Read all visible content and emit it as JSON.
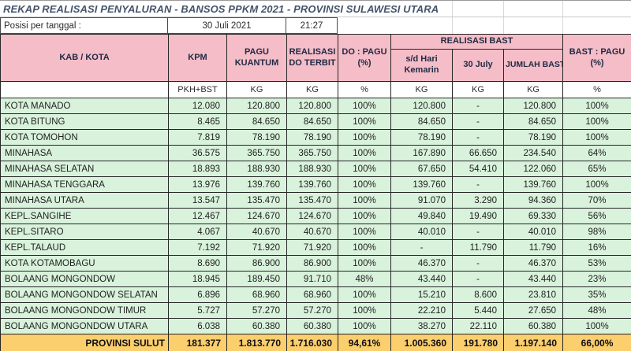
{
  "title": "REKAP REALISASI PENYALURAN - BANSOS PPKM 2021 - PROVINSI SULAWESI UTARA",
  "info": {
    "label": "Posisi per tanggal :",
    "date": "30 Juli 2021",
    "time": "21:27"
  },
  "colors": {
    "header_bg": "#F5BDC7",
    "header_text": "#1F2A44",
    "row_bg": "#D9F2DC",
    "total_bg": "#FBCE6E",
    "title_color": "#44546A",
    "border_dark": "#262626"
  },
  "table": {
    "headers": {
      "kab_kota": "KAB / KOTA",
      "kpm": "KPM",
      "pagu_kuantum": "PAGU KUANTUM",
      "realisasi_do_terbit": "REALISASI DO TERBIT",
      "do_pagu": "DO : PAGU (%)",
      "realisasi_bast": "REALISASI BAST",
      "sd_hari_kemarin": "s/d Hari Kemarin",
      "tgl_30_july": "30 July",
      "jumlah_bast": "JUMLAH BAST",
      "bast_pagu": "BAST : PAGU (%)"
    },
    "units": [
      "PKH+BST",
      "KG",
      "KG",
      "%",
      "KG",
      "KG",
      "KG",
      "%"
    ],
    "rows": [
      {
        "name": "KOTA MANADO",
        "values": [
          "12.080",
          "120.800",
          "120.800",
          "100%",
          "120.800",
          "-",
          "120.800",
          "100%"
        ]
      },
      {
        "name": "KOTA BITUNG",
        "values": [
          "8.465",
          "84.650",
          "84.650",
          "100%",
          "84.650",
          "-",
          "84.650",
          "100%"
        ]
      },
      {
        "name": "KOTA TOMOHON",
        "values": [
          "7.819",
          "78.190",
          "78.190",
          "100%",
          "78.190",
          "-",
          "78.190",
          "100%"
        ]
      },
      {
        "name": "MINAHASA",
        "values": [
          "36.575",
          "365.750",
          "365.750",
          "100%",
          "167.890",
          "66.650",
          "234.540",
          "64%"
        ]
      },
      {
        "name": "MINAHASA SELATAN",
        "values": [
          "18.893",
          "188.930",
          "188.930",
          "100%",
          "67.650",
          "54.410",
          "122.060",
          "65%"
        ]
      },
      {
        "name": "MINAHASA TENGGARA",
        "values": [
          "13.976",
          "139.760",
          "139.760",
          "100%",
          "139.760",
          "-",
          "139.760",
          "100%"
        ]
      },
      {
        "name": "MINAHASA UTARA",
        "values": [
          "13.547",
          "135.470",
          "135.470",
          "100%",
          "91.070",
          "3.290",
          "94.360",
          "70%"
        ]
      },
      {
        "name": "KEPL.SANGIHE",
        "values": [
          "12.467",
          "124.670",
          "124.670",
          "100%",
          "49.840",
          "19.490",
          "69.330",
          "56%"
        ]
      },
      {
        "name": "KEPL.SITARO",
        "values": [
          "4.067",
          "40.670",
          "40.670",
          "100%",
          "40.010",
          "-",
          "40.010",
          "98%"
        ]
      },
      {
        "name": "KEPL.TALAUD",
        "values": [
          "7.192",
          "71.920",
          "71.920",
          "100%",
          "-",
          "11.790",
          "11.790",
          "16%"
        ]
      },
      {
        "name": "KOTA KOTAMOBAGU",
        "values": [
          "8.690",
          "86.900",
          "86.900",
          "100%",
          "46.370",
          "-",
          "46.370",
          "53%"
        ]
      },
      {
        "name": "BOLAANG MONGONDOW",
        "values": [
          "18.945",
          "189.450",
          "91.710",
          "48%",
          "43.440",
          "-",
          "43.440",
          "23%"
        ]
      },
      {
        "name": "BOLAANG MONGONDOW SELATAN",
        "values": [
          "6.896",
          "68.960",
          "68.960",
          "100%",
          "15.210",
          "8.600",
          "23.810",
          "35%"
        ]
      },
      {
        "name": "BOLAANG MONGONDOW TIMUR",
        "values": [
          "5.727",
          "57.270",
          "57.270",
          "100%",
          "22.210",
          "5.440",
          "27.650",
          "48%"
        ]
      },
      {
        "name": "BOLAANG MONGONDOW UTARA",
        "values": [
          "6.038",
          "60.380",
          "60.380",
          "100%",
          "38.270",
          "22.110",
          "60.380",
          "100%"
        ]
      }
    ],
    "total": {
      "label": "PROVINSI SULUT",
      "values": [
        "181.377",
        "1.813.770",
        "1.716.030",
        "94,61%",
        "1.005.360",
        "191.780",
        "1.197.140",
        "66,00%"
      ]
    }
  }
}
